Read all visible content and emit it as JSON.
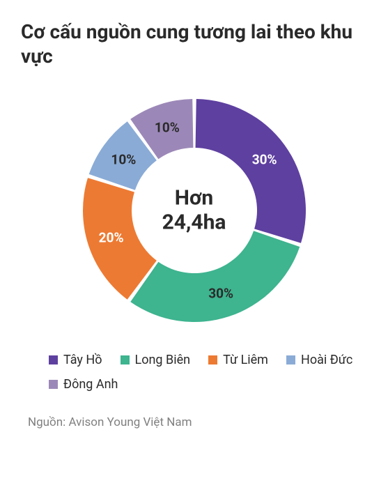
{
  "title": "Cơ cấu nguồn cung tương lai theo khu vực",
  "chart": {
    "type": "donut",
    "center_line1": "Hơn",
    "center_line2": "24,4ha",
    "center_fontsize": 30,
    "label_fontsize": 19,
    "inner_radius": 90,
    "outer_radius": 160,
    "gap_deg": 2,
    "start_angle_deg": -90,
    "background_color": "#ffffff",
    "slices": [
      {
        "name": "Tây Hồ",
        "value": 30,
        "label": "30%",
        "color": "#5e40a0"
      },
      {
        "name": "Long Biên",
        "value": 30,
        "label": "30%",
        "color": "#3eb48f"
      },
      {
        "name": "Từ Liêm",
        "value": 20,
        "label": "20%",
        "color": "#ed7a32"
      },
      {
        "name": "Hoài Đức",
        "value": 10,
        "label": "10%",
        "color": "#8aabd6"
      },
      {
        "name": "Đông Anh",
        "value": 10,
        "label": "10%",
        "color": "#9c88b8"
      }
    ]
  },
  "legend": {
    "items": [
      {
        "label": "Tây Hồ",
        "color": "#5e40a0"
      },
      {
        "label": "Long Biên",
        "color": "#3eb48f"
      },
      {
        "label": "Từ Liêm",
        "color": "#ed7a32"
      },
      {
        "label": "Hoài Đức",
        "color": "#8aabd6"
      },
      {
        "label": "Đông Anh",
        "color": "#9c88b8"
      }
    ],
    "swatch_size": 13,
    "fontsize": 18
  },
  "source": "Nguồn: Avison Young Việt Nam",
  "colors": {
    "text": "#2a2a2a",
    "muted": "#808080"
  }
}
